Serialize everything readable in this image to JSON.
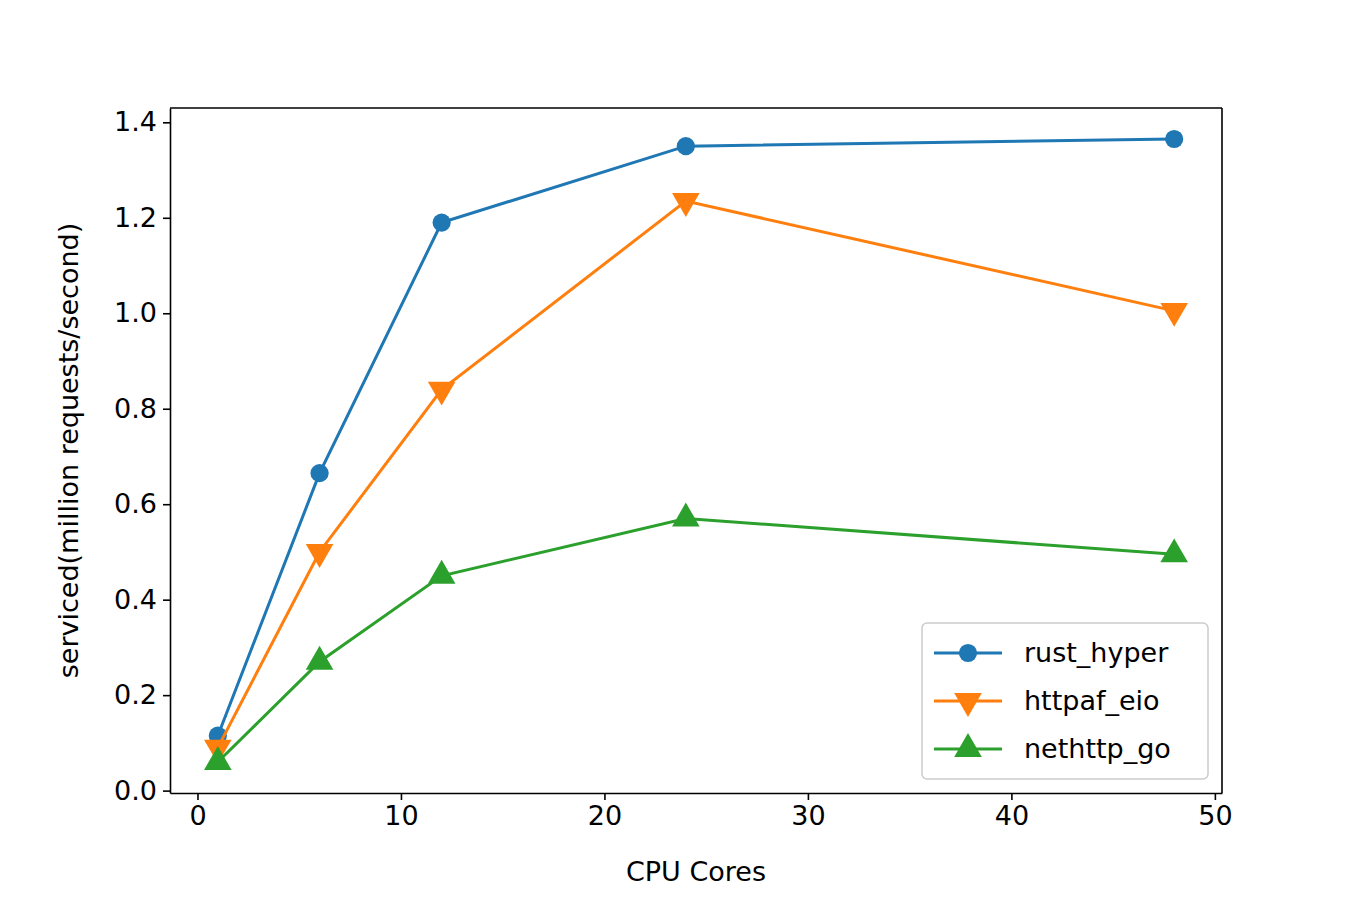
{
  "chart_data": {
    "type": "line",
    "x_label": "CPU Cores",
    "y_label": "serviced(million requests/second)",
    "x": [
      1,
      6,
      12,
      24,
      48
    ],
    "series": [
      {
        "name": "rust_hyper",
        "color": "#1f77b4",
        "marker": "circle",
        "values": [
          0.115,
          0.665,
          1.19,
          1.35,
          1.365
        ]
      },
      {
        "name": "httpaf_eio",
        "color": "#ff7f0e",
        "marker": "triangle-down",
        "values": [
          0.09,
          0.5,
          0.84,
          1.235,
          1.005
        ]
      },
      {
        "name": "nethttp_go",
        "color": "#2ca02c",
        "marker": "triangle-up",
        "values": [
          0.06,
          0.27,
          0.45,
          0.57,
          0.495
        ]
      }
    ],
    "xlim": [
      -1.35,
      50.35
    ],
    "xticks": [
      0,
      10,
      20,
      30,
      40,
      50
    ],
    "ylim": [
      -0.005,
      1.43
    ],
    "yticks": [
      {
        "value": 0,
        "label": "0.0"
      },
      {
        "value": 0.2,
        "label": "0.2"
      },
      {
        "value": 0.4,
        "label": "0.4"
      },
      {
        "value": 0.6,
        "label": "0.6"
      },
      {
        "value": 0.8,
        "label": "0.8"
      },
      {
        "value": 1.0,
        "label": "1.0"
      },
      {
        "value": 1.2,
        "label": "1.2"
      },
      {
        "value": 1.4,
        "label": "1.4"
      }
    ],
    "grid": false,
    "legend": "lower right"
  }
}
